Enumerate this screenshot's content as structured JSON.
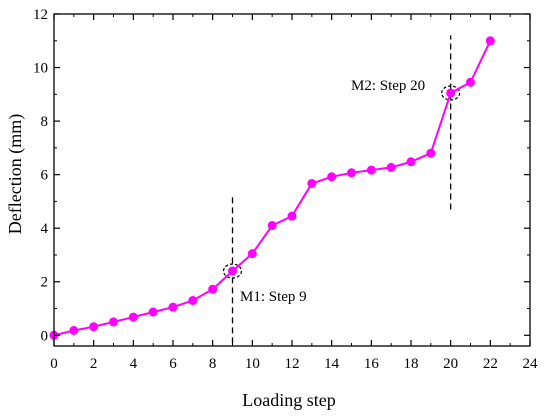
{
  "chart_data": {
    "type": "line",
    "title": "",
    "xlabel": "Loading step",
    "ylabel": "Deflection (mm)",
    "xlim": [
      0,
      24
    ],
    "ylim": [
      -0.4,
      12
    ],
    "xticks": [
      0,
      2,
      4,
      6,
      8,
      10,
      12,
      14,
      16,
      18,
      20,
      22,
      24
    ],
    "yticks": [
      0,
      2,
      4,
      6,
      8,
      10,
      12
    ],
    "grid": false,
    "series": [
      {
        "color": "#ff00ff",
        "marker": "circle",
        "points": [
          {
            "x": 0,
            "y": 0.0
          },
          {
            "x": 1,
            "y": 0.18
          },
          {
            "x": 2,
            "y": 0.32
          },
          {
            "x": 3,
            "y": 0.5
          },
          {
            "x": 4,
            "y": 0.68
          },
          {
            "x": 5,
            "y": 0.87
          },
          {
            "x": 6,
            "y": 1.05
          },
          {
            "x": 7,
            "y": 1.3
          },
          {
            "x": 8,
            "y": 1.72
          },
          {
            "x": 9,
            "y": 2.4
          },
          {
            "x": 10,
            "y": 3.05
          },
          {
            "x": 11,
            "y": 4.1
          },
          {
            "x": 12,
            "y": 4.45
          },
          {
            "x": 13,
            "y": 5.67
          },
          {
            "x": 14,
            "y": 5.92
          },
          {
            "x": 15,
            "y": 6.07
          },
          {
            "x": 16,
            "y": 6.17
          },
          {
            "x": 17,
            "y": 6.27
          },
          {
            "x": 18,
            "y": 6.48
          },
          {
            "x": 19,
            "y": 6.8
          },
          {
            "x": 20,
            "y": 9.05
          },
          {
            "x": 21,
            "y": 9.45
          },
          {
            "x": 22,
            "y": 11.0
          }
        ]
      }
    ],
    "markers": [
      {
        "label": "M1: Step 9",
        "x": 9,
        "y": 2.4,
        "line_from": -0.3,
        "line_to": 5.3
      },
      {
        "label": "M2: Step 20",
        "x": 20,
        "y": 9.05,
        "line_from": 4.7,
        "line_to": 11.2
      }
    ]
  }
}
